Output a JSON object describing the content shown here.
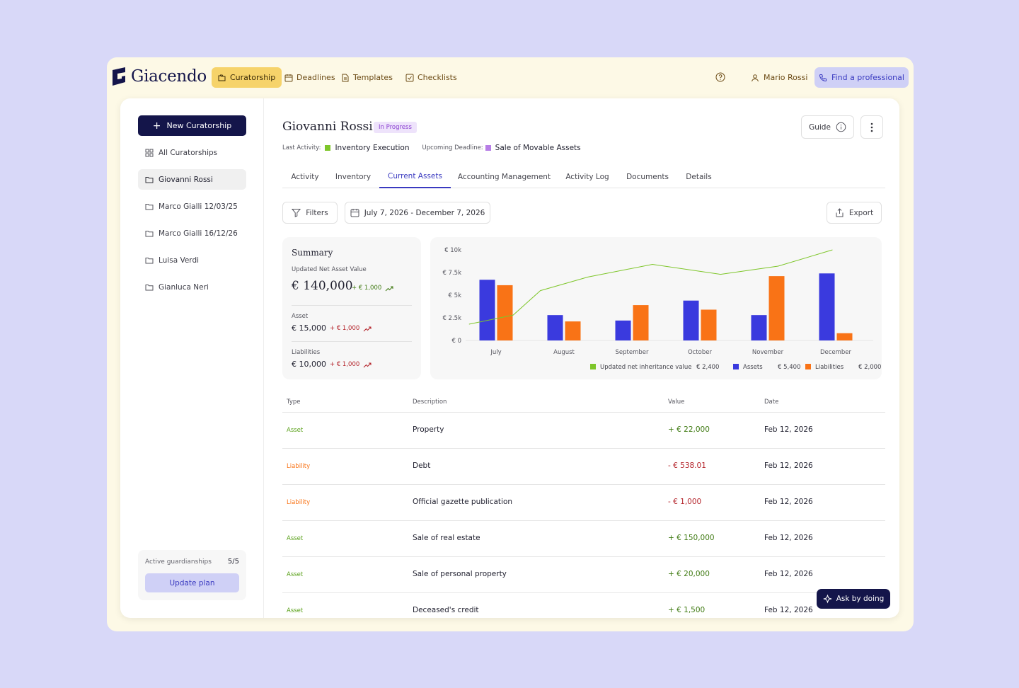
{
  "brand": {
    "name": "Giacendo"
  },
  "nav": {
    "items": [
      {
        "label": "Curatorship",
        "icon": "folders-icon",
        "active": true
      },
      {
        "label": "Deadlines",
        "icon": "calendar-icon",
        "active": false
      },
      {
        "label": "Templates",
        "icon": "document-icon",
        "active": false
      },
      {
        "label": "Checklists",
        "icon": "checkbox-icon",
        "active": false
      }
    ],
    "user": "Mario Rossi",
    "find_professional": "Find a professional"
  },
  "sidebar": {
    "new_button": "New Curatorship",
    "all_label": "All Curatorships",
    "items": [
      {
        "label": "Giovanni Rossi",
        "active": true
      },
      {
        "label": "Marco Gialli 12/03/25",
        "active": false
      },
      {
        "label": "Marco Gialli 16/12/26",
        "active": false
      },
      {
        "label": "Luisa Verdi",
        "active": false
      },
      {
        "label": "Gianluca Neri",
        "active": false
      }
    ],
    "plan": {
      "label": "Active guardianships",
      "count": "5/5",
      "button": "Update plan"
    }
  },
  "header": {
    "title": "Giovanni Rossi",
    "status": "In Progress",
    "last_activity_label": "Last Activity:",
    "last_activity": "Inventory Execution",
    "upcoming_label": "Upcoming Deadline:",
    "upcoming": "Sale of Movable Assets",
    "guide": "Guide"
  },
  "tabs": [
    {
      "label": "Activity",
      "active": false
    },
    {
      "label": "Inventory",
      "active": false
    },
    {
      "label": "Current Assets",
      "active": true
    },
    {
      "label": "Accounting Management",
      "active": false
    },
    {
      "label": "Activity Log",
      "active": false
    },
    {
      "label": "Documents",
      "active": false
    },
    {
      "label": "Details",
      "active": false
    }
  ],
  "toolbar": {
    "filters": "Filters",
    "date_range": "July 7, 2026 - December 7, 2026",
    "export": "Export"
  },
  "summary": {
    "title": "Summary",
    "net_label": "Updated Net Asset Value",
    "net_value": "€ 140,000",
    "net_delta": "+ € 1,000",
    "asset_label": "Asset",
    "asset_value": "€ 15,000",
    "asset_delta": "+ € 1,000",
    "liab_label": "Liabilities",
    "liab_value": "€ 10,000",
    "liab_delta": "+ € 1,000"
  },
  "chart_data": {
    "type": "bar",
    "categories": [
      "July",
      "August",
      "September",
      "October",
      "November",
      "December"
    ],
    "y_ticks": [
      "€ 0",
      "€ 2.5k",
      "€ 5k",
      "€ 7.5k",
      "€ 10k"
    ],
    "ylim": [
      0,
      10000
    ],
    "series": [
      {
        "name": "Assets",
        "kind": "bar",
        "color": "#3a3ade",
        "values": [
          6700,
          2800,
          2200,
          4400,
          2800,
          7400
        ]
      },
      {
        "name": "Liabilities",
        "kind": "bar",
        "color": "#f97316",
        "values": [
          6100,
          2100,
          3900,
          3400,
          7100,
          800
        ]
      },
      {
        "name": "Updated net inheritance value",
        "kind": "line",
        "color": "#7ec62a",
        "x": [
          0,
          0.65,
          1.05,
          1.75,
          2.7,
          3.7,
          4.55,
          5.35
        ],
        "values": [
          1800,
          2800,
          5500,
          7000,
          8400,
          7300,
          8200,
          10000
        ]
      }
    ],
    "legend": [
      {
        "name": "Updated net inheritance value",
        "value": "€ 2,400",
        "color": "#7ec62a"
      },
      {
        "name": "Assets",
        "value": "€ 5,400",
        "color": "#3a3ade"
      },
      {
        "name": "Liabilities",
        "value": "€ 2,000",
        "color": "#f97316"
      }
    ],
    "legend_position": "bottom-right",
    "grid": false
  },
  "table": {
    "headers": {
      "type": "Type",
      "description": "Description",
      "value": "Value",
      "date": "Date"
    },
    "rows": [
      {
        "type": "Asset",
        "description": "Property",
        "value": "+ € 22,000",
        "date": "Feb 12, 2026"
      },
      {
        "type": "Liability",
        "description": "Debt",
        "value": "- € 538.01",
        "date": "Feb 12, 2026"
      },
      {
        "type": "Liability",
        "description": "Official gazette publication",
        "value": "- € 1,000",
        "date": "Feb 12, 2026"
      },
      {
        "type": "Asset",
        "description": "Sale of real estate",
        "value": "+ € 150,000",
        "date": "Feb 12, 2026"
      },
      {
        "type": "Asset",
        "description": "Sale of personal property",
        "value": "+ € 20,000",
        "date": "Feb 12, 2026"
      },
      {
        "type": "Asset",
        "description": "Deceased's credit",
        "value": "+ € 1,500",
        "date": "Feb 12, 2026"
      }
    ]
  },
  "colors": {
    "asset": "#5aa11a",
    "liability": "#f97316",
    "positive": "#3f7a12",
    "negative": "#b4232a",
    "last_activity_dot": "#7ec62a",
    "deadline_dot": "#b77ee6"
  },
  "ask_button": "Ask by doing"
}
